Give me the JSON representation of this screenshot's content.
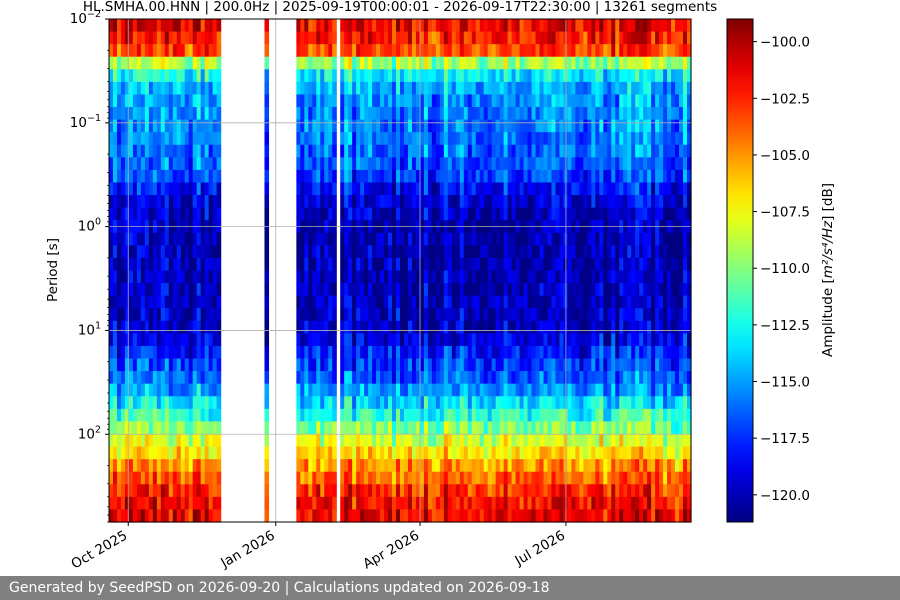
{
  "chart_data": {
    "type": "heatmap",
    "title": "HL.SMHA.00.HNN | 200.0Hz | 2025-09-19T00:00:01 - 2026-09-17T22:30:00 | 13261 segments",
    "xlabel": "",
    "ylabel": "Period [s]",
    "x_range": [
      "2025-09-19",
      "2026-09-17"
    ],
    "x_ticks": [
      {
        "date": "2025-10-01",
        "label": "Oct 2025"
      },
      {
        "date": "2026-01-01",
        "label": "Jan 2026"
      },
      {
        "date": "2026-04-01",
        "label": "Apr 2026"
      },
      {
        "date": "2026-07-01",
        "label": "Jul 2026"
      }
    ],
    "y_scale": "log",
    "y_range": [
      0.01,
      700
    ],
    "y_inverted": true,
    "y_ticks": [
      {
        "value": 0.01,
        "base": "10",
        "exp": "−2"
      },
      {
        "value": 0.1,
        "base": "10",
        "exp": "−1"
      },
      {
        "value": 1,
        "base": "10",
        "exp": "0"
      },
      {
        "value": 10,
        "base": "10",
        "exp": "1"
      },
      {
        "value": 100,
        "base": "10",
        "exp": "2"
      }
    ],
    "grid": true,
    "colorbar": {
      "label_prefix": "Amplitude [",
      "label_unit": "m²/s⁴/Hz",
      "label_suffix": "] [dB]",
      "colormap": "jet",
      "range": [
        -121.2,
        -99.0
      ],
      "ticks": [
        -100.0,
        -102.5,
        -105.0,
        -107.5,
        -110.0,
        -112.5,
        -115.0,
        -117.5,
        -120.0
      ],
      "tick_labels": [
        "−100.0",
        "−102.5",
        "−105.0",
        "−107.5",
        "−110.0",
        "−112.5",
        "−115.0",
        "−117.5",
        "−120.0"
      ]
    },
    "data_gaps": [
      [
        "2025-11-27",
        "2025-12-04"
      ],
      [
        "2025-12-05",
        "2025-12-26"
      ],
      [
        "2025-12-28",
        "2026-01-14"
      ],
      [
        "2026-02-08",
        "2026-02-09"
      ],
      [
        "2026-09-01",
        "2026-09-02"
      ]
    ],
    "amplitude_profile_db": [
      {
        "period": 0.01,
        "amplitude": -101.0
      },
      {
        "period": 0.02,
        "amplitude": -103.0
      },
      {
        "period": 0.03,
        "amplitude": -112.0
      },
      {
        "period": 0.05,
        "amplitude": -115.0
      },
      {
        "period": 0.1,
        "amplitude": -115.5
      },
      {
        "period": 0.3,
        "amplitude": -116.5
      },
      {
        "period": 0.5,
        "amplitude": -119.0
      },
      {
        "period": 1,
        "amplitude": -120.0
      },
      {
        "period": 3,
        "amplitude": -120.0
      },
      {
        "period": 10,
        "amplitude": -119.5
      },
      {
        "period": 30,
        "amplitude": -116.0
      },
      {
        "period": 60,
        "amplitude": -112.5
      },
      {
        "period": 100,
        "amplitude": -109.0
      },
      {
        "period": 200,
        "amplitude": -105.0
      },
      {
        "period": 400,
        "amplitude": -102.0
      },
      {
        "period": 700,
        "amplitude": -101.0
      }
    ]
  },
  "footer": {
    "text": "Generated by SeedPSD on 2026-09-20 | Calculations updated on 2026-09-18"
  }
}
